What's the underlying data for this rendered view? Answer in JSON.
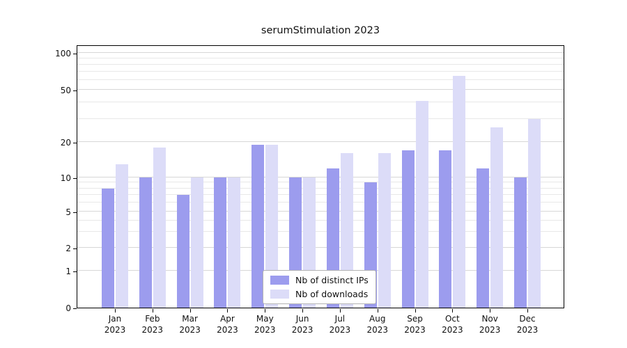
{
  "figure": {
    "background": "#ffffff"
  },
  "chart_data": {
    "type": "bar",
    "title": "serumStimulation 2023",
    "categories": [
      "Jan 2023",
      "Feb 2023",
      "Mar 2023",
      "Apr 2023",
      "May 2023",
      "Jun 2023",
      "Jul 2023",
      "Aug 2023",
      "Sep 2023",
      "Oct 2023",
      "Nov 2023",
      "Dec 2023"
    ],
    "series": [
      {
        "name": "Nb of distinct IPs",
        "color": "#9c9cee",
        "values": [
          8,
          10,
          7,
          10,
          19,
          10,
          12,
          9,
          17,
          17,
          12,
          10
        ]
      },
      {
        "name": "Nb of downloads",
        "color": "#dcdcf8",
        "values": [
          13,
          18,
          10,
          10,
          19,
          10,
          16,
          16,
          41,
          65,
          26,
          30
        ]
      }
    ],
    "xlabel": "",
    "ylabel": "",
    "yscale": "symlog",
    "yticks": [
      0,
      1,
      2,
      5,
      10,
      20,
      50,
      100
    ],
    "minor_gridlines": [
      3,
      4,
      6,
      7,
      8,
      9,
      30,
      40,
      60,
      70,
      80,
      90
    ],
    "ylim": [
      0,
      130
    ],
    "grid": "horizontal",
    "legend_position": "lower center inside"
  },
  "colors": {
    "major_grid": "#d7d7d7",
    "minor_grid": "#e8e8e8",
    "axis": "#000000"
  }
}
